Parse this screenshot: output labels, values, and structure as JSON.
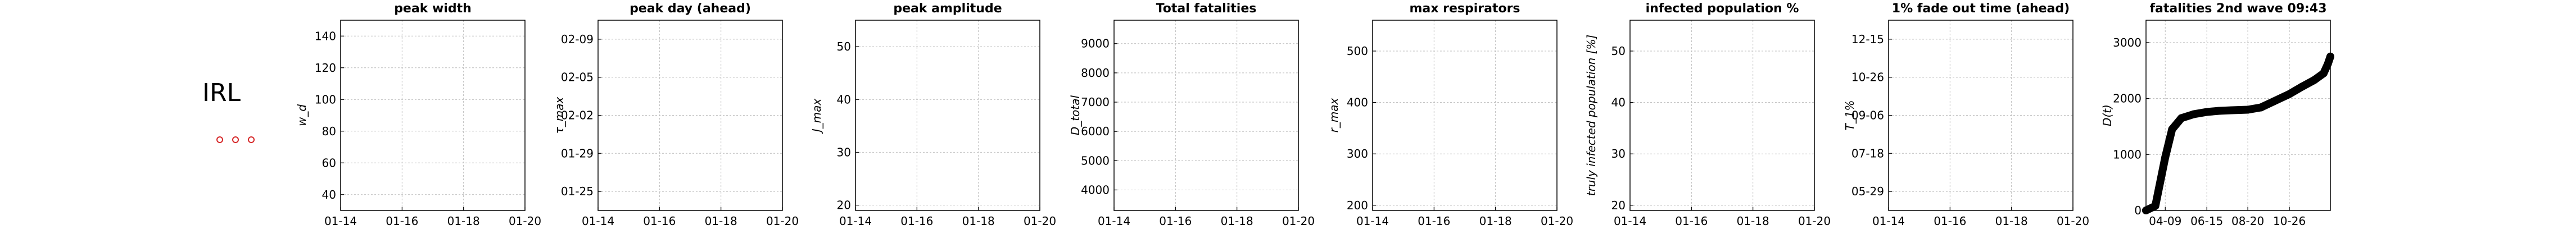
{
  "country": "IRL",
  "markers": {
    "count": 3,
    "color": "#d62728"
  },
  "chart_data": [
    {
      "type": "line",
      "title": "peak width",
      "ylabel": "w_d",
      "xticks": [
        "01-14",
        "01-16",
        "01-18",
        "01-20"
      ],
      "yticks": [
        40,
        60,
        80,
        100,
        120,
        140
      ],
      "ylim": [
        30,
        150
      ],
      "grid": true,
      "series": []
    },
    {
      "type": "line",
      "title": "peak day (ahead)",
      "ylabel": "τ_max",
      "xticks": [
        "01-14",
        "01-16",
        "01-18",
        "01-20"
      ],
      "yticks": [
        "01-25",
        "01-29",
        "02-02",
        "02-05",
        "02-09"
      ],
      "grid": true,
      "series": []
    },
    {
      "type": "line",
      "title": "peak amplitude",
      "ylabel": "J_max",
      "xticks": [
        "01-14",
        "01-16",
        "01-18",
        "01-20"
      ],
      "yticks": [
        20,
        30,
        40,
        50
      ],
      "ylim": [
        19,
        55
      ],
      "grid": true,
      "series": []
    },
    {
      "type": "line",
      "title": "Total fatalities",
      "ylabel": "D_total",
      "xticks": [
        "01-14",
        "01-16",
        "01-18",
        "01-20"
      ],
      "yticks": [
        4000,
        5000,
        6000,
        7000,
        8000,
        9000
      ],
      "ylim": [
        3300,
        9800
      ],
      "grid": true,
      "series": []
    },
    {
      "type": "line",
      "title": "max respirators",
      "ylabel": "r_max",
      "xticks": [
        "01-14",
        "01-16",
        "01-18",
        "01-20"
      ],
      "yticks": [
        200,
        300,
        400,
        500
      ],
      "ylim": [
        190,
        560
      ],
      "grid": true,
      "series": []
    },
    {
      "type": "line",
      "title": "infected population %",
      "ylabel": "truly infected population [%]",
      "xticks": [
        "01-14",
        "01-16",
        "01-18",
        "01-20"
      ],
      "yticks": [
        20,
        30,
        40,
        50
      ],
      "ylim": [
        19,
        56
      ],
      "grid": true,
      "series": []
    },
    {
      "type": "line",
      "title": "1% fade out time (ahead)",
      "ylabel": "T_1%",
      "xticks": [
        "01-14",
        "01-16",
        "01-18",
        "01-20"
      ],
      "yticks": [
        "05-29",
        "07-18",
        "09-06",
        "10-26",
        "12-15"
      ],
      "grid": true,
      "series": []
    },
    {
      "type": "scatter",
      "title": "fatalities 2nd wave 09:43",
      "ylabel": "D(t)",
      "xticks": [
        "04-09",
        "06-15",
        "08-20",
        "10-26"
      ],
      "yticks": [
        0,
        1000,
        2000,
        3000
      ],
      "ylim": [
        0,
        3400
      ],
      "grid": true,
      "series": [
        {
          "x": [
            "03-09",
            "03-24",
            "04-09",
            "04-20",
            "05-05",
            "05-25",
            "06-15",
            "07-05",
            "07-25",
            "08-20",
            "09-10",
            "10-01",
            "10-26",
            "11-15",
            "12-05",
            "12-20",
            "12-27",
            "12-31"
          ],
          "y": [
            0,
            80,
            950,
            1450,
            1650,
            1720,
            1760,
            1780,
            1790,
            1800,
            1840,
            1950,
            2080,
            2210,
            2330,
            2450,
            2620,
            2750
          ]
        }
      ]
    }
  ]
}
